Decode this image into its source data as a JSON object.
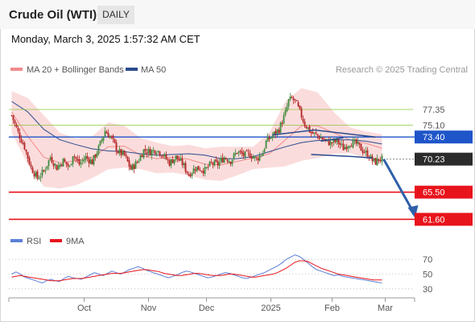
{
  "header": {
    "title": "Crude Oil (WTI)",
    "timeframe": "DAILY"
  },
  "timestamp": "Monday, March 3, 2025 1:57:32 AM CET",
  "legend": {
    "ma20": {
      "label": "MA 20 + Bollinger Bands",
      "color": "#f28b8b"
    },
    "ma50": {
      "label": "MA 50",
      "color": "#2a4b8d"
    }
  },
  "credit": "Research © 2025 Trading Central",
  "colors": {
    "bull": "#3e8a3e",
    "bear": "#b22222",
    "resistance": "#1f55c9",
    "support": "#e8141c",
    "band_fill": "#fbdcdc",
    "fib": "#8cc63e",
    "ma50": "#2a4b8d",
    "ma20": "#f28b8b",
    "rsi": "#5b7fd6",
    "rsi_ma": "#e8141c"
  },
  "chart_data": [
    {
      "type": "candlestick",
      "y_range": [
        60.5,
        81.5
      ],
      "x_ticks": [
        "Oct",
        "Nov",
        "Dec",
        "2025",
        "Feb",
        "Mar"
      ],
      "levels": [
        {
          "value": 77.35,
          "label": "77.35",
          "style": "fib"
        },
        {
          "value": 75.1,
          "label": "75.10",
          "style": "fib"
        },
        {
          "value": 73.4,
          "label": "73.40",
          "style": "resistance"
        },
        {
          "value": 70.23,
          "label": "70.23",
          "style": "last"
        },
        {
          "value": 65.5,
          "label": "65.50",
          "style": "support"
        },
        {
          "value": 61.6,
          "label": "61.60",
          "style": "support"
        }
      ],
      "anchors": [
        [
          0,
          76.5
        ],
        [
          4,
          74.0
        ],
        [
          8,
          72.0
        ],
        [
          12,
          69.0
        ],
        [
          16,
          67.5
        ],
        [
          20,
          68.5
        ],
        [
          24,
          70.5
        ],
        [
          28,
          69.0
        ],
        [
          32,
          70.0
        ],
        [
          36,
          69.0
        ],
        [
          38,
          71.0
        ],
        [
          42,
          69.5
        ],
        [
          46,
          70.5
        ],
        [
          50,
          69.8
        ],
        [
          54,
          71.8
        ],
        [
          58,
          74.3
        ],
        [
          62,
          73.2
        ],
        [
          66,
          71.3
        ],
        [
          70,
          70.8
        ],
        [
          74,
          68.8
        ],
        [
          78,
          69.8
        ],
        [
          82,
          71.5
        ],
        [
          86,
          71.3
        ],
        [
          90,
          71.6
        ],
        [
          94,
          70.8
        ],
        [
          98,
          69.7
        ],
        [
          102,
          70.5
        ],
        [
          106,
          69.6
        ],
        [
          110,
          68.0
        ],
        [
          114,
          69.0
        ],
        [
          118,
          68.8
        ],
        [
          120,
          68.6
        ],
        [
          124,
          69.6
        ],
        [
          128,
          69.5
        ],
        [
          132,
          70.5
        ],
        [
          136,
          70.0
        ],
        [
          140,
          71.3
        ],
        [
          144,
          70.8
        ],
        [
          148,
          70.9
        ],
        [
          152,
          70.2
        ],
        [
          156,
          71.2
        ],
        [
          158,
          72.7
        ],
        [
          162,
          73.6
        ],
        [
          166,
          74.5
        ],
        [
          170,
          76.8
        ],
        [
          172,
          78.6
        ],
        [
          174,
          78.9
        ],
        [
          176,
          78.5
        ],
        [
          178,
          77.5
        ],
        [
          182,
          75.3
        ],
        [
          186,
          74.0
        ],
        [
          190,
          73.6
        ],
        [
          194,
          73.0
        ],
        [
          198,
          72.5
        ],
        [
          202,
          72.8
        ],
        [
          206,
          71.8
        ],
        [
          210,
          72.6
        ],
        [
          214,
          72.4
        ],
        [
          218,
          71.5
        ],
        [
          222,
          70.7
        ],
        [
          224,
          70.0
        ],
        [
          226,
          69.8
        ],
        [
          228,
          70.2
        ],
        [
          230,
          70.23
        ]
      ],
      "ma50": [
        [
          0,
          78.5
        ],
        [
          10,
          77.0
        ],
        [
          20,
          74.5
        ],
        [
          30,
          73.0
        ],
        [
          40,
          72.3
        ],
        [
          50,
          71.7
        ],
        [
          60,
          71.4
        ],
        [
          70,
          71.3
        ],
        [
          80,
          71.0
        ],
        [
          90,
          70.8
        ],
        [
          100,
          70.9
        ],
        [
          110,
          71.0
        ],
        [
          120,
          70.8
        ],
        [
          130,
          70.3
        ],
        [
          140,
          70.3
        ],
        [
          150,
          70.6
        ],
        [
          160,
          71.3
        ],
        [
          170,
          72.0
        ],
        [
          180,
          72.6
        ],
        [
          190,
          72.9
        ],
        [
          200,
          73.0
        ],
        [
          210,
          73.0
        ],
        [
          220,
          72.8
        ],
        [
          230,
          72.4
        ]
      ],
      "ma20": [
        [
          0,
          77.0
        ],
        [
          10,
          73.5
        ],
        [
          20,
          70.5
        ],
        [
          30,
          69.7
        ],
        [
          40,
          70.0
        ],
        [
          50,
          70.5
        ],
        [
          60,
          72.0
        ],
        [
          70,
          72.1
        ],
        [
          80,
          70.8
        ],
        [
          90,
          70.3
        ],
        [
          100,
          70.5
        ],
        [
          110,
          70.2
        ],
        [
          120,
          69.5
        ],
        [
          130,
          69.4
        ],
        [
          140,
          69.9
        ],
        [
          150,
          70.4
        ],
        [
          160,
          71.0
        ],
        [
          170,
          73.0
        ],
        [
          180,
          75.0
        ],
        [
          190,
          75.0
        ],
        [
          200,
          74.0
        ],
        [
          210,
          73.0
        ],
        [
          220,
          72.5
        ],
        [
          230,
          71.8
        ]
      ],
      "bollinger_upper": [
        [
          0,
          80.0
        ],
        [
          10,
          79.0
        ],
        [
          20,
          76.5
        ],
        [
          30,
          74.0
        ],
        [
          40,
          73.2
        ],
        [
          50,
          73.5
        ],
        [
          60,
          75.5
        ],
        [
          70,
          75.0
        ],
        [
          80,
          73.3
        ],
        [
          90,
          72.6
        ],
        [
          100,
          72.1
        ],
        [
          110,
          72.3
        ],
        [
          120,
          71.8
        ],
        [
          130,
          72.0
        ],
        [
          140,
          72.0
        ],
        [
          150,
          72.0
        ],
        [
          160,
          74.0
        ],
        [
          170,
          78.5
        ],
        [
          180,
          80.4
        ],
        [
          190,
          79.8
        ],
        [
          200,
          77.0
        ],
        [
          210,
          74.8
        ],
        [
          220,
          74.2
        ],
        [
          230,
          73.8
        ]
      ],
      "bollinger_lower": [
        [
          0,
          74.0
        ],
        [
          10,
          69.5
        ],
        [
          20,
          66.3
        ],
        [
          30,
          66.0
        ],
        [
          40,
          66.5
        ],
        [
          50,
          67.5
        ],
        [
          60,
          68.8
        ],
        [
          70,
          69.0
        ],
        [
          80,
          68.8
        ],
        [
          90,
          68.2
        ],
        [
          100,
          68.3
        ],
        [
          110,
          67.9
        ],
        [
          120,
          67.3
        ],
        [
          130,
          67.1
        ],
        [
          140,
          67.9
        ],
        [
          150,
          68.8
        ],
        [
          160,
          69.0
        ],
        [
          170,
          69.2
        ],
        [
          180,
          70.0
        ],
        [
          190,
          70.4
        ],
        [
          200,
          71.0
        ],
        [
          210,
          71.1
        ],
        [
          220,
          70.3
        ],
        [
          230,
          69.8
        ]
      ],
      "pattern_lines": [
        [
          [
            162,
            73.7
          ],
          [
            188,
            74.4
          ],
          [
            226,
            73.4
          ]
        ],
        [
          [
            192,
            72.8
          ],
          [
            206,
            73.3
          ]
        ],
        [
          [
            186,
            70.9
          ],
          [
            212,
            70.6
          ],
          [
            224,
            70.4
          ]
        ]
      ],
      "projection": {
        "from": [
          230,
          70.23
        ],
        "to": [
          250,
          61.9
        ]
      }
    },
    {
      "type": "line",
      "title": "RSI",
      "y_range": [
        20,
        80
      ],
      "y_ticks": [
        70,
        50,
        30
      ],
      "series": [
        {
          "name": "RSI",
          "values": [
            50,
            53,
            50,
            46,
            44,
            42,
            40,
            38,
            41,
            43,
            41,
            40,
            44,
            47,
            45,
            44,
            43,
            46,
            49,
            52,
            50,
            48,
            51,
            54,
            52,
            50,
            53,
            56,
            58,
            60,
            58,
            55,
            53,
            51,
            49,
            47,
            45,
            47,
            49,
            52,
            54,
            53,
            51,
            49,
            47,
            45,
            46,
            48,
            50,
            52,
            51,
            49,
            47,
            45,
            44,
            46,
            48,
            50,
            52,
            55,
            58,
            61,
            65,
            70,
            73,
            76,
            74,
            70,
            65,
            60,
            56,
            54,
            52,
            50,
            48,
            49,
            47,
            46,
            45,
            44,
            43,
            42,
            41,
            40,
            39,
            38
          ]
        },
        {
          "name": "9MA",
          "values": [
            46,
            47,
            48,
            47,
            46,
            45,
            44,
            43,
            42,
            41,
            41,
            41,
            42,
            43,
            44,
            44,
            44,
            45,
            46,
            47,
            48,
            49,
            50,
            51,
            51,
            51,
            52,
            53,
            54,
            55,
            56,
            56,
            55,
            54,
            53,
            51,
            50,
            49,
            48,
            48,
            49,
            50,
            51,
            51,
            50,
            49,
            48,
            48,
            48,
            49,
            50,
            50,
            49,
            48,
            47,
            46,
            46,
            47,
            48,
            49,
            50,
            52,
            55,
            58,
            62,
            66,
            68,
            68,
            67,
            64,
            61,
            58,
            56,
            54,
            52,
            50,
            49,
            48,
            47,
            46,
            45,
            44,
            43,
            42,
            42,
            42
          ]
        }
      ]
    }
  ]
}
